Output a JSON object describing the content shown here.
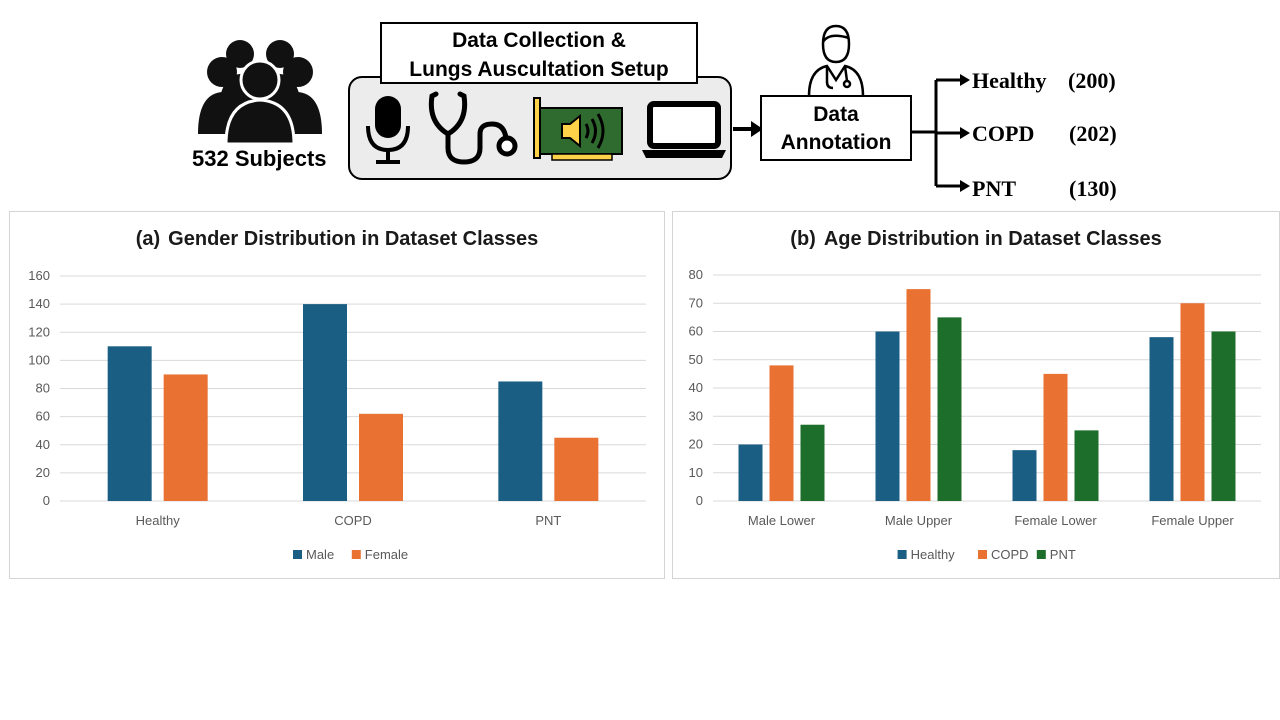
{
  "workflow": {
    "subjects_label": "532 Subjects",
    "setup_title_line1": "Data Collection &",
    "setup_title_line2": "Lungs Auscultation Setup",
    "devices": [
      "microphone-icon",
      "stethoscope-icon",
      "sound-card-icon",
      "laptop-icon"
    ],
    "annotation_line1": "Data",
    "annotation_line2": "Annotation",
    "classes": [
      {
        "name": "Healthy",
        "count": "(200)"
      },
      {
        "name": "COPD",
        "count": "(202)"
      },
      {
        "name": "PNT",
        "count": "(130)"
      }
    ]
  },
  "colors": {
    "blue": "#1a5e84",
    "orange": "#e97132",
    "green": "#1d6e2a",
    "grid": "#d9d9d9",
    "axis_text": "#595959"
  },
  "chart_data": [
    {
      "id": "gender",
      "type": "bar",
      "tag": "(a)",
      "title": "Gender Distribution in Dataset Classes",
      "categories": [
        "Healthy",
        "COPD",
        "PNT"
      ],
      "series": [
        {
          "name": "Male",
          "color": "#1a5e84",
          "values": [
            110,
            140,
            85
          ]
        },
        {
          "name": "Female",
          "color": "#e97132",
          "values": [
            90,
            62,
            45
          ]
        }
      ],
      "ylim": [
        0,
        160
      ],
      "yticks": [
        0,
        20,
        40,
        60,
        80,
        100,
        120,
        140,
        160
      ],
      "grid": true,
      "legend": "bottom"
    },
    {
      "id": "age",
      "type": "bar",
      "tag": "(b)",
      "title": "Age Distribution in Dataset Classes",
      "categories": [
        "Male Lower",
        "Male Upper",
        "Female Lower",
        "Female Upper"
      ],
      "series": [
        {
          "name": "Healthy",
          "color": "#1a5e84",
          "values": [
            20,
            60,
            18,
            58
          ]
        },
        {
          "name": "COPD",
          "color": "#e97132",
          "values": [
            48,
            75,
            45,
            70
          ]
        },
        {
          "name": "PNT",
          "color": "#1d6e2a",
          "values": [
            27,
            65,
            25,
            60
          ]
        }
      ],
      "ylim": [
        0,
        80
      ],
      "yticks": [
        0,
        10,
        20,
        30,
        40,
        50,
        60,
        70,
        80
      ],
      "grid": true,
      "legend": "bottom"
    }
  ]
}
